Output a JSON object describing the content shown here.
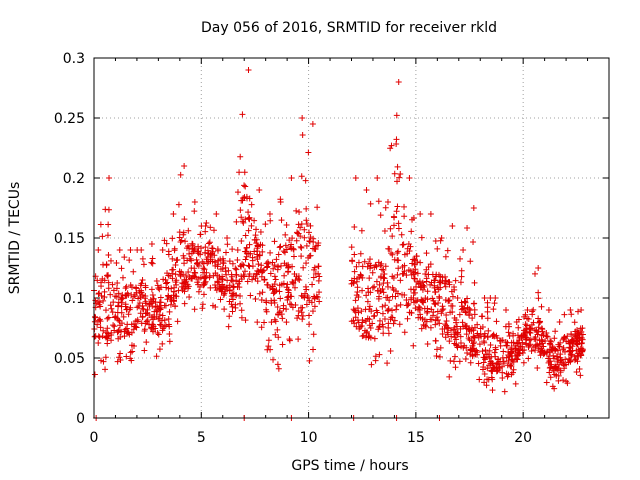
{
  "chart_data": {
    "type": "scatter",
    "title": "Day 056 of 2016, SRMTID for receiver rkld",
    "xlabel": "GPS time / hours",
    "ylabel": "SRMTID / TECUs",
    "xlim": [
      0,
      24
    ],
    "ylim": [
      0,
      0.3
    ],
    "xticks": [
      0,
      5,
      10,
      15,
      20
    ],
    "xtick_labels": [
      "0",
      "5",
      "10",
      "15",
      "20"
    ],
    "yticks": [
      0,
      0.05,
      0.1,
      0.15,
      0.2,
      0.25,
      0.3
    ],
    "ytick_labels": [
      "0",
      "0.05",
      "0.1",
      "0.15",
      "0.2",
      "0.25",
      "0.3"
    ],
    "grid": true,
    "marker": "+",
    "color": "#e00000",
    "zero_points_x": [
      0.1,
      7.0,
      9.2,
      12.1,
      14.1,
      16.1
    ],
    "envelope": [
      {
        "x": 0.0,
        "lo": 0.035,
        "hi": 0.14,
        "mid": 0.085
      },
      {
        "x": 0.5,
        "lo": 0.04,
        "hi": 0.2,
        "mid": 0.1
      },
      {
        "x": 1.0,
        "lo": 0.045,
        "hi": 0.14,
        "mid": 0.085
      },
      {
        "x": 1.5,
        "lo": 0.045,
        "hi": 0.14,
        "mid": 0.09
      },
      {
        "x": 2.0,
        "lo": 0.05,
        "hi": 0.14,
        "mid": 0.09
      },
      {
        "x": 2.5,
        "lo": 0.05,
        "hi": 0.145,
        "mid": 0.095
      },
      {
        "x": 3.0,
        "lo": 0.05,
        "hi": 0.14,
        "mid": 0.09
      },
      {
        "x": 3.5,
        "lo": 0.06,
        "hi": 0.17,
        "mid": 0.1
      },
      {
        "x": 4.0,
        "lo": 0.08,
        "hi": 0.21,
        "mid": 0.13
      },
      {
        "x": 4.5,
        "lo": 0.09,
        "hi": 0.18,
        "mid": 0.13
      },
      {
        "x": 5.0,
        "lo": 0.09,
        "hi": 0.16,
        "mid": 0.125
      },
      {
        "x": 5.5,
        "lo": 0.09,
        "hi": 0.17,
        "mid": 0.13
      },
      {
        "x": 6.0,
        "lo": 0.08,
        "hi": 0.15,
        "mid": 0.12
      },
      {
        "x": 6.5,
        "lo": 0.07,
        "hi": 0.14,
        "mid": 0.1
      },
      {
        "x": 7.0,
        "lo": 0.08,
        "hi": 0.29,
        "mid": 0.16
      },
      {
        "x": 7.5,
        "lo": 0.07,
        "hi": 0.19,
        "mid": 0.14
      },
      {
        "x": 8.0,
        "lo": 0.06,
        "hi": 0.17,
        "mid": 0.11
      },
      {
        "x": 8.5,
        "lo": 0.035,
        "hi": 0.18,
        "mid": 0.1
      },
      {
        "x": 9.0,
        "lo": 0.06,
        "hi": 0.2,
        "mid": 0.12
      },
      {
        "x": 9.5,
        "lo": 0.05,
        "hi": 0.25,
        "mid": 0.13
      },
      {
        "x": 10.0,
        "lo": 0.045,
        "hi": 0.245,
        "mid": 0.12
      },
      {
        "x": 10.5,
        "lo": 0.07,
        "hi": 0.19,
        "mid": 0.12
      },
      {
        "x": 12.0,
        "lo": 0.07,
        "hi": 0.2,
        "mid": 0.11
      },
      {
        "x": 12.5,
        "lo": 0.05,
        "hi": 0.19,
        "mid": 0.1
      },
      {
        "x": 13.0,
        "lo": 0.035,
        "hi": 0.2,
        "mid": 0.1
      },
      {
        "x": 13.5,
        "lo": 0.04,
        "hi": 0.18,
        "mid": 0.1
      },
      {
        "x": 14.0,
        "lo": 0.05,
        "hi": 0.28,
        "mid": 0.13
      },
      {
        "x": 14.5,
        "lo": 0.06,
        "hi": 0.2,
        "mid": 0.12
      },
      {
        "x": 15.0,
        "lo": 0.05,
        "hi": 0.17,
        "mid": 0.11
      },
      {
        "x": 15.5,
        "lo": 0.05,
        "hi": 0.17,
        "mid": 0.1
      },
      {
        "x": 16.0,
        "lo": 0.05,
        "hi": 0.15,
        "mid": 0.1
      },
      {
        "x": 16.5,
        "lo": 0.03,
        "hi": 0.16,
        "mid": 0.09
      },
      {
        "x": 17.0,
        "lo": 0.04,
        "hi": 0.14,
        "mid": 0.08
      },
      {
        "x": 17.5,
        "lo": 0.045,
        "hi": 0.175,
        "mid": 0.08
      },
      {
        "x": 18.0,
        "lo": 0.02,
        "hi": 0.1,
        "mid": 0.06
      },
      {
        "x": 18.5,
        "lo": 0.02,
        "hi": 0.1,
        "mid": 0.055
      },
      {
        "x": 19.0,
        "lo": 0.015,
        "hi": 0.09,
        "mid": 0.05
      },
      {
        "x": 19.5,
        "lo": 0.02,
        "hi": 0.08,
        "mid": 0.05
      },
      {
        "x": 20.0,
        "lo": 0.04,
        "hi": 0.09,
        "mid": 0.065
      },
      {
        "x": 20.5,
        "lo": 0.04,
        "hi": 0.125,
        "mid": 0.075
      },
      {
        "x": 21.0,
        "lo": 0.03,
        "hi": 0.09,
        "mid": 0.06
      },
      {
        "x": 21.5,
        "lo": 0.02,
        "hi": 0.08,
        "mid": 0.045
      },
      {
        "x": 22.0,
        "lo": 0.025,
        "hi": 0.09,
        "mid": 0.055
      },
      {
        "x": 22.5,
        "lo": 0.03,
        "hi": 0.09,
        "mid": 0.06
      },
      {
        "x": 22.8,
        "lo": 0.035,
        "hi": 0.09,
        "mid": 0.065
      }
    ]
  }
}
